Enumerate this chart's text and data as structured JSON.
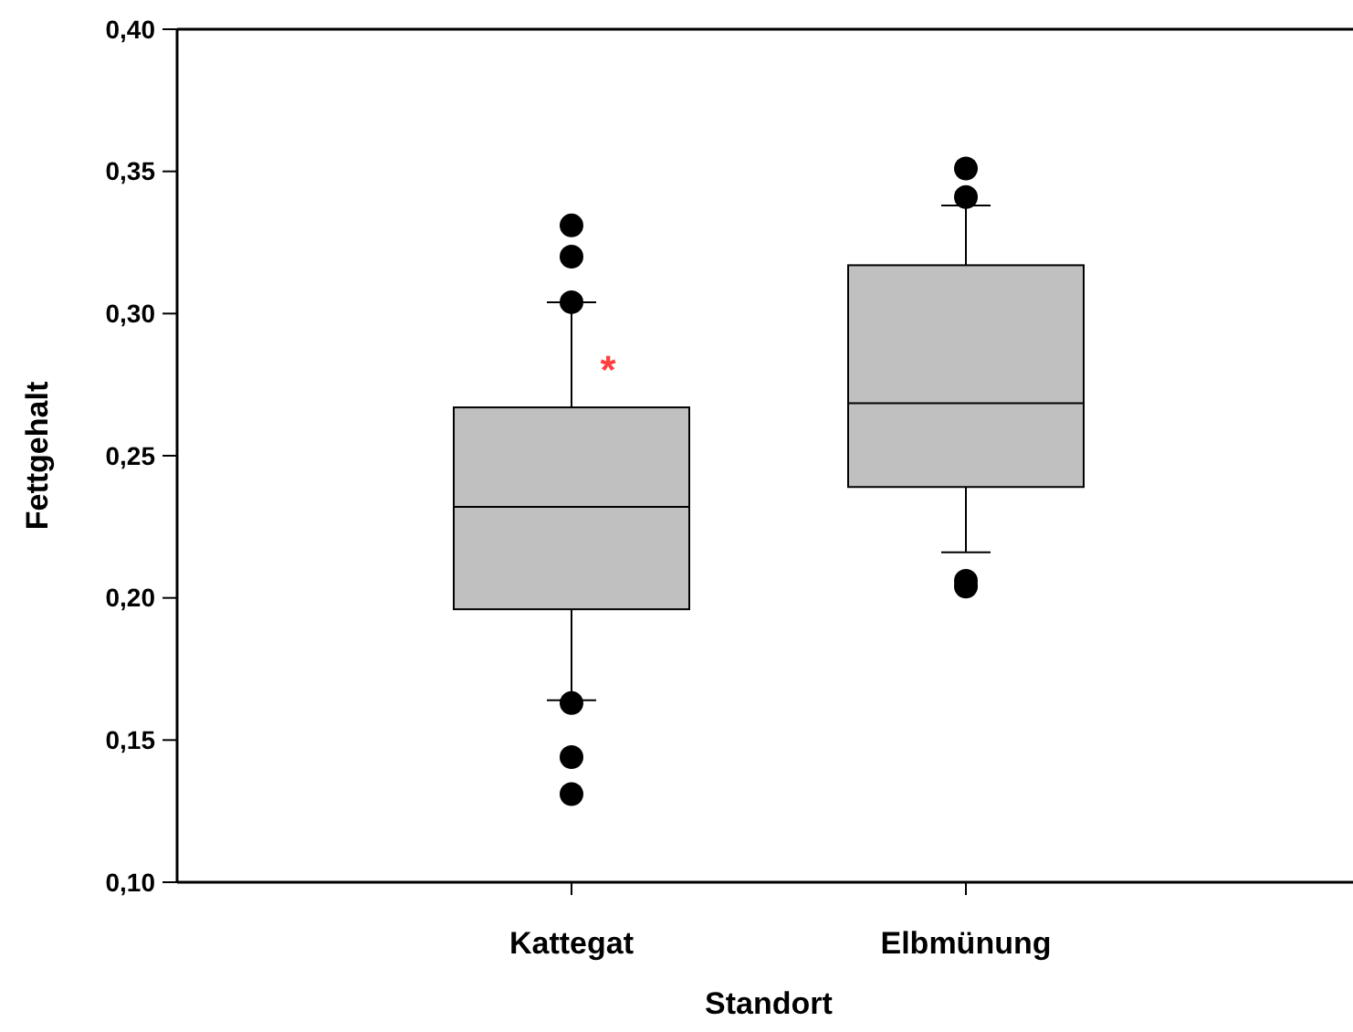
{
  "chart_data": {
    "type": "box",
    "xlabel": "Standort",
    "ylabel": "Fettgehalt",
    "categories": [
      "Kattegat",
      "Elbmünung"
    ],
    "boxes": [
      {
        "low": 0.164,
        "q1": 0.196,
        "median": 0.232,
        "q3": 0.267,
        "high": 0.304,
        "outliers": [
          0.331,
          0.32,
          0.304,
          0.163,
          0.144,
          0.131
        ]
      },
      {
        "low": 0.216,
        "q1": 0.239,
        "median": 0.2685,
        "q3": 0.317,
        "high": 0.338,
        "outliers": [
          0.351,
          0.341,
          0.206,
          0.204
        ]
      }
    ],
    "color": "#c0c0c0",
    "ylim": [
      0.1,
      0.4
    ],
    "yticks": [
      {
        "value": 0.1,
        "label": "0,10"
      },
      {
        "value": 0.15,
        "label": "0,15"
      },
      {
        "value": 0.2,
        "label": "0,20"
      },
      {
        "value": 0.25,
        "label": "0,25"
      },
      {
        "value": 0.3,
        "label": "0,30"
      },
      {
        "value": 0.35,
        "label": "0,35"
      },
      {
        "value": 0.4,
        "label": "0,40"
      }
    ],
    "annotations": [
      {
        "text": "*",
        "x": "Kattegat",
        "y": 0.284
      }
    ],
    "grid": false
  }
}
